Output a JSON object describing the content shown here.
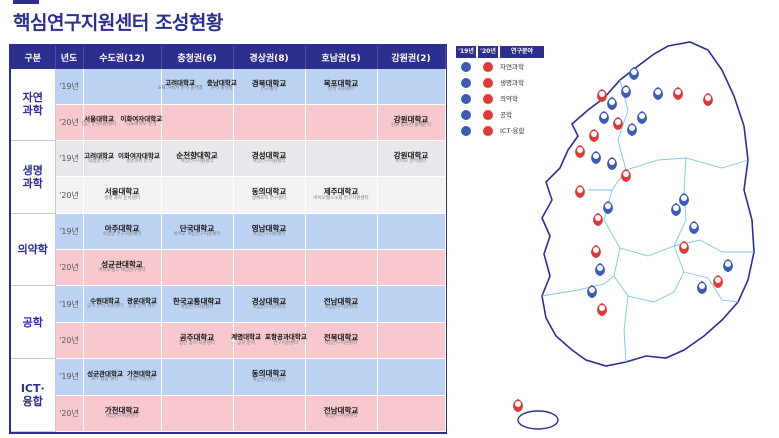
{
  "title": "핵심연구지원센터 조성현황",
  "headers": [
    "구분",
    "년도",
    "수도권(12)",
    "충청권(6)",
    "경상권(8)",
    "호남권(5)",
    "강원권(2)"
  ],
  "rows": [
    {
      "field": "자연\n과학",
      "year": "'19년",
      "cells": [
        [],
        [
          {
            "name": "고려대학교",
            "sub": "소재·가속기 분석 플랫폼"
          },
          {
            "name": "충남대학교",
            "sub": "분석 플랫폼"
          }
        ],
        [
          {
            "name": "경북대학교",
            "sub": "연구센터",
            "big": true
          }
        ],
        [
          {
            "name": "목포대학교",
            "sub": "분석 지원센터",
            "big": true
          }
        ],
        []
      ]
    },
    {
      "field": "",
      "year": "'20년",
      "cells": [
        [
          {
            "name": "서울대학교",
            "sub": "첨단 분석지원센터"
          },
          {
            "name": "이화여자대학교",
            "sub": "나노바이오 분석"
          }
        ],
        [],
        [],
        [],
        [
          {
            "name": "강원대학교",
            "sub": "강원 방사선 통제분석",
            "big": true
          }
        ]
      ]
    },
    {
      "field": "생명\n과학",
      "year": "'19년",
      "cells": [
        [
          {
            "name": "고려대학교",
            "sub": "의생명 연구"
          },
          {
            "name": "이화여자대학교",
            "sub": "생명과학 분석"
          }
        ],
        [
          {
            "name": "순천향대학교",
            "sub": "핵심연구지원센터",
            "big": true
          }
        ],
        [
          {
            "name": "경성대학교",
            "sub": "핵심연구지원센터",
            "big": true
          }
        ],
        [],
        [
          {
            "name": "강원대학교",
            "sub": "바이오 분석센터",
            "big": true
          }
        ]
      ]
    },
    {
      "field": "",
      "year": "'20년",
      "cells": [
        [
          {
            "name": "서울대학교",
            "sub": "생명 과학 분석센터",
            "big": true
          }
        ],
        [],
        [
          {
            "name": "동의대학교",
            "sub": "생체조직 연구센터",
            "big": true
          }
        ],
        [
          {
            "name": "제주대학교",
            "sub": "바이오헬스소재 연구지원센터",
            "big": true
          }
        ],
        []
      ]
    },
    {
      "field": "의약학",
      "year": "'19년",
      "cells": [
        [
          {
            "name": "아주대학교",
            "sub": "의생명 연구지원센터",
            "big": true
          }
        ],
        [
          {
            "name": "단국대학교",
            "sub": "바이오 핵심연구지원센터",
            "big": true
          }
        ],
        [
          {
            "name": "영남대학교",
            "sub": "핵심연구지원센터",
            "big": true
          }
        ],
        [],
        []
      ]
    },
    {
      "field": "",
      "year": "'20년",
      "cells": [
        [
          {
            "name": "성균관대학교",
            "sub": "바이오헬스 핵심연구센터",
            "big": true
          }
        ],
        [],
        [],
        [],
        []
      ]
    },
    {
      "field": "공학",
      "year": "'19년",
      "cells": [
        [
          {
            "name": "수원대학교",
            "sub": "공학 분석 지원센터"
          },
          {
            "name": "광운대학교",
            "sub": "융합 분석 센터"
          }
        ],
        [
          {
            "name": "한국교통대학교",
            "sub": "핵심연구지원센터",
            "big": true
          }
        ],
        [
          {
            "name": "경상대학교",
            "sub": "핵심연구지원센터",
            "big": true
          }
        ],
        [
          {
            "name": "전남대학교",
            "sub": "핵심연구지원센터",
            "big": true
          }
        ],
        []
      ]
    },
    {
      "field": "",
      "year": "'20년",
      "cells": [
        [],
        [
          {
            "name": "공주대학교",
            "sub": "첨단 공학 지원센터",
            "big": true
          }
        ],
        [
          {
            "name": "계명대학교",
            "sub": "공학 분석"
          },
          {
            "name": "포항공과대학교",
            "sub": "연구지원센터"
          }
        ],
        [
          {
            "name": "전북대학교",
            "sub": "핵심연구지원센터",
            "big": true
          }
        ],
        []
      ]
    },
    {
      "field": "ICT·\n융합",
      "year": "'19년",
      "cells": [
        [
          {
            "name": "성균관대학교",
            "sub": "ICT 융합 센터"
          },
          {
            "name": "가천대학교",
            "sub": "융합 지원센터"
          }
        ],
        [],
        [
          {
            "name": "동의대학교",
            "sub": "핵심연구지원센터",
            "big": true
          }
        ],
        [],
        []
      ]
    },
    {
      "field": "",
      "year": "'20년",
      "cells": [
        [
          {
            "name": "가천대학교",
            "sub": "핵심연구지원센터",
            "big": true
          }
        ],
        [],
        [],
        [
          {
            "name": "전남대학교",
            "sub": "핵심연구지원센터",
            "big": true
          }
        ],
        []
      ]
    }
  ],
  "legend": {
    "headers": [
      "'19년",
      "'20년",
      "연구분야"
    ],
    "items": [
      "자연과학",
      "생명과학",
      "의약학",
      "공학",
      "ICT·융합"
    ]
  },
  "colors": {
    "brand": "#2d2f8f",
    "y19": "#bcd2f2",
    "y20": "#f7c9cf",
    "pin19": "#3c5bb4",
    "pin20": "#dc3a3a"
  }
}
